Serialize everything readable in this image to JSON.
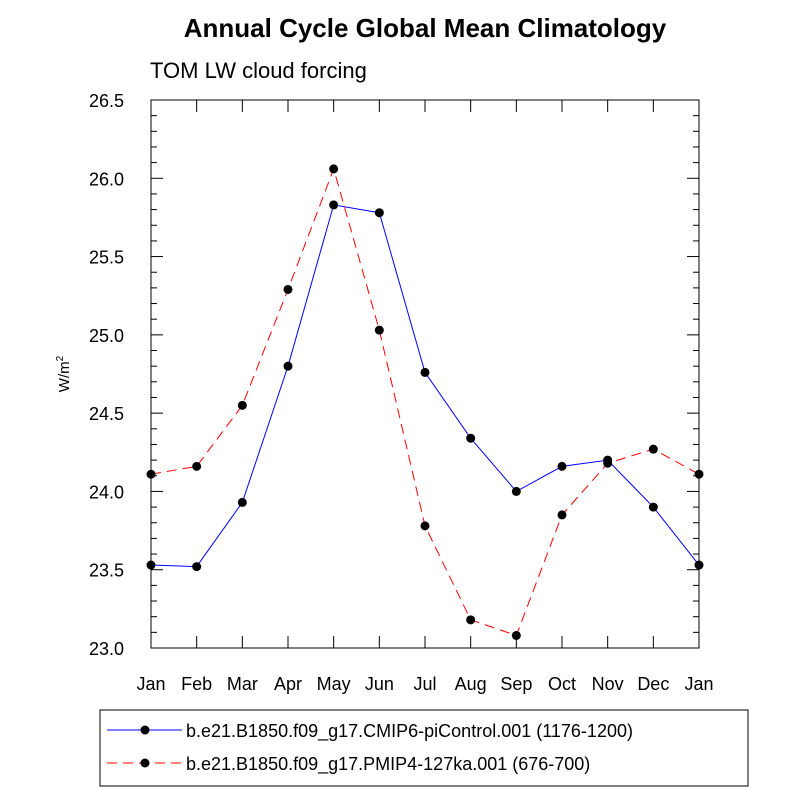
{
  "chart_data": {
    "type": "line",
    "title": "Annual Cycle Global Mean Climatology",
    "subtitle": "TOM LW cloud forcing",
    "xlabel": "",
    "ylabel": "W/m",
    "ylabel_superscript": "2",
    "categories": [
      "Jan",
      "Feb",
      "Mar",
      "Apr",
      "May",
      "Jun",
      "Jul",
      "Aug",
      "Sep",
      "Oct",
      "Nov",
      "Dec",
      "Jan"
    ],
    "ylim": [
      23.0,
      26.5
    ],
    "yticks": [
      "23.0",
      "23.5",
      "24.0",
      "24.5",
      "25.0",
      "25.5",
      "26.0",
      "26.5"
    ],
    "series": [
      {
        "name": "b.e21.B1850.f09_g17.CMIP6-piControl.001 (1176-1200)",
        "color": "#0000ff",
        "dash": "solid",
        "values": [
          23.53,
          23.52,
          23.93,
          24.8,
          25.83,
          25.78,
          24.76,
          24.34,
          24.0,
          24.16,
          24.2,
          23.9,
          23.53
        ]
      },
      {
        "name": "b.e21.B1850.f09_g17.PMIP4-127ka.001 (676-700)",
        "color": "#ff0000",
        "dash": "dashed",
        "values": [
          24.11,
          24.16,
          24.55,
          25.29,
          26.06,
          25.03,
          23.78,
          23.18,
          23.08,
          23.85,
          24.18,
          24.27,
          24.11
        ]
      }
    ]
  }
}
